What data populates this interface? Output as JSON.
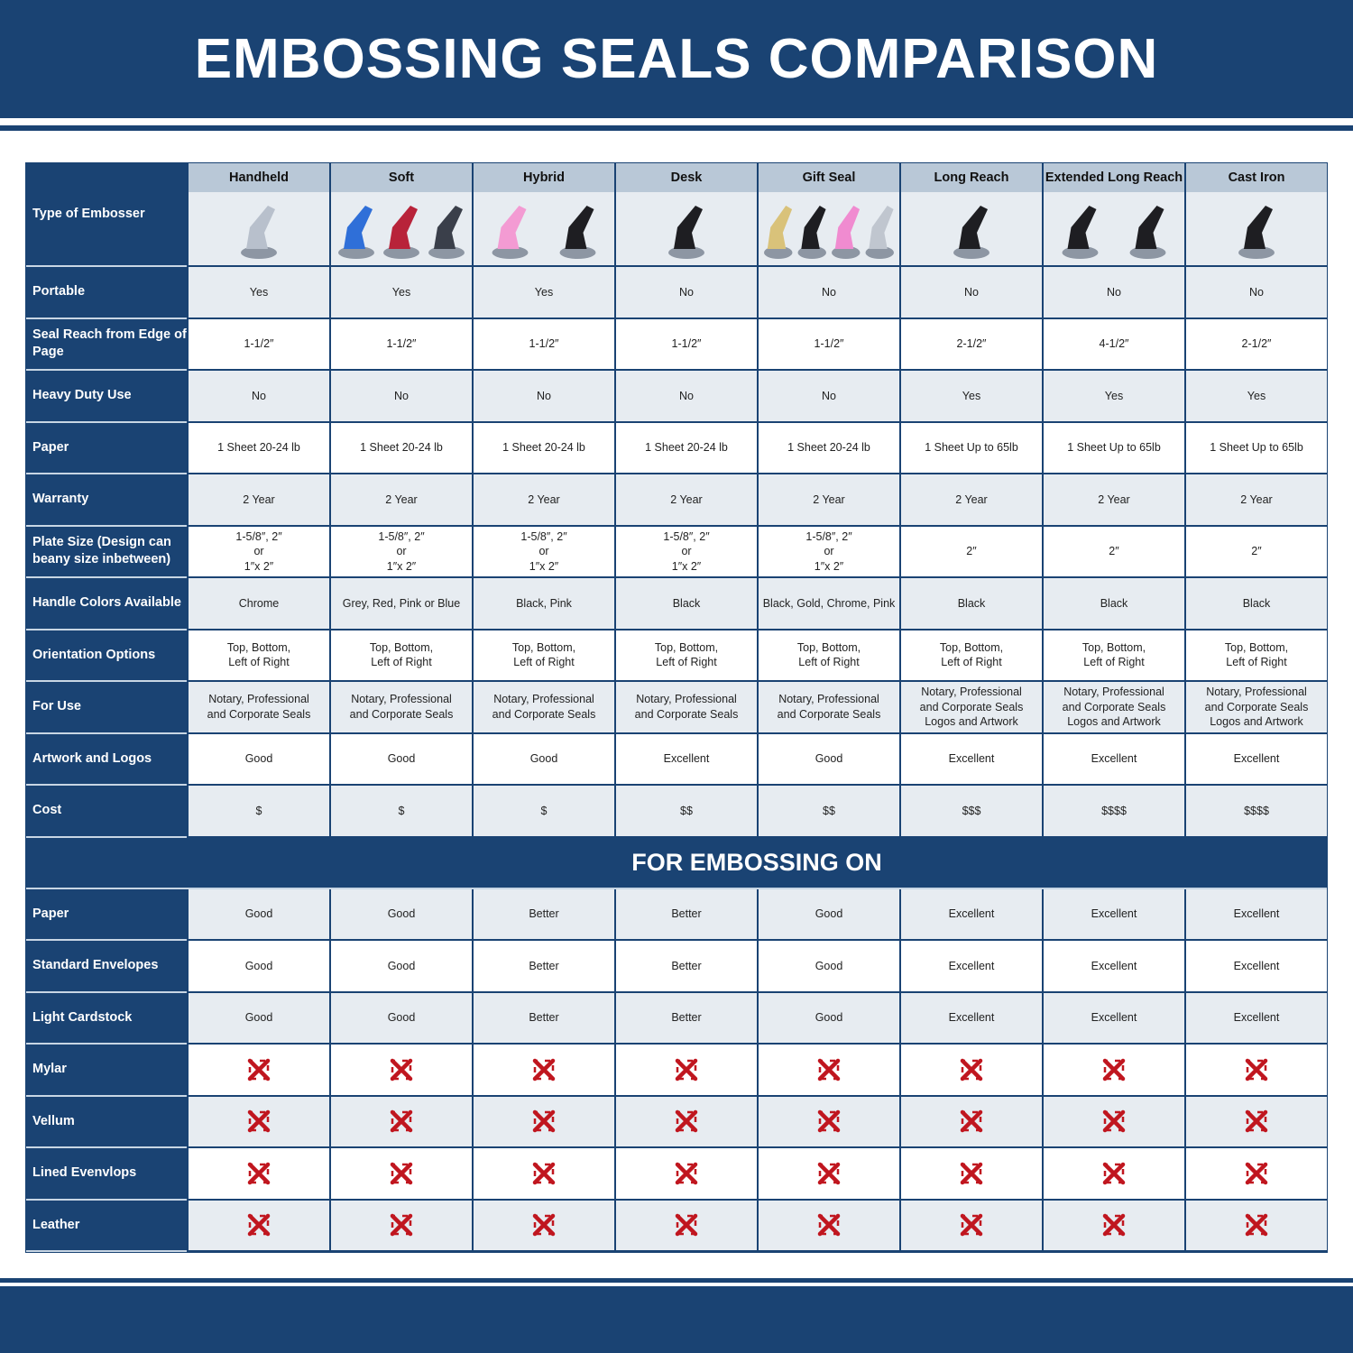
{
  "title": "EMBOSSING SEALS COMPARISON",
  "colors": {
    "navy": "#1a4373",
    "header_gray": "#b9c8d7",
    "row_light": "#e7ecf1",
    "x_red": "#c0161f"
  },
  "header_label": "Type of Embosser",
  "columns": [
    {
      "name": "Handheld",
      "image_colors": [
        "#b8c0cc"
      ]
    },
    {
      "name": "Soft",
      "image_colors": [
        "#2f6fd8",
        "#b8233a",
        "#3a3f4a"
      ]
    },
    {
      "name": "Hybrid",
      "image_colors": [
        "#f39bd3",
        "#1e1e22"
      ]
    },
    {
      "name": "Desk",
      "image_colors": [
        "#1e1e22"
      ]
    },
    {
      "name": "Gift Seal",
      "image_colors": [
        "#d9c27a",
        "#1e1e22",
        "#f08bd0",
        "#c0c6cf"
      ]
    },
    {
      "name": "Long Reach",
      "image_colors": [
        "#1e1e22"
      ]
    },
    {
      "name": "Extended Long Reach",
      "image_colors": [
        "#1e1e22",
        "#1e1e22"
      ]
    },
    {
      "name": "Cast Iron",
      "image_colors": [
        "#1e1e22"
      ]
    }
  ],
  "rows": [
    {
      "label": "Portable",
      "values": [
        "Yes",
        "Yes",
        "Yes",
        "No",
        "No",
        "No",
        "No",
        "No"
      ]
    },
    {
      "label": "Seal Reach from Edge of Page",
      "values": [
        "1-1/2″",
        "1-1/2″",
        "1-1/2″",
        "1-1/2″",
        "1-1/2″",
        "2-1/2″",
        "4-1/2″",
        "2-1/2″"
      ]
    },
    {
      "label": "Heavy Duty Use",
      "values": [
        "No",
        "No",
        "No",
        "No",
        "No",
        "Yes",
        "Yes",
        "Yes"
      ]
    },
    {
      "label": "Paper",
      "values": [
        "1 Sheet 20-24 lb",
        "1 Sheet 20-24 lb",
        "1 Sheet 20-24 lb",
        "1 Sheet 20-24 lb",
        "1 Sheet 20-24 lb",
        "1 Sheet Up to 65lb",
        "1 Sheet Up to 65lb",
        "1 Sheet Up to 65lb"
      ]
    },
    {
      "label": "Warranty",
      "values": [
        "2 Year",
        "2 Year",
        "2 Year",
        "2 Year",
        "2 Year",
        "2 Year",
        "2 Year",
        "2 Year"
      ]
    },
    {
      "label": "Plate Size (Design can beany size inbetween)",
      "values": [
        "1-5/8″, 2″\nor\n1″x 2″",
        "1-5/8″, 2″\nor\n1″x 2″",
        "1-5/8″, 2″\nor\n1″x 2″",
        "1-5/8″, 2″\nor\n1″x 2″",
        "1-5/8″, 2″\nor\n1″x 2″",
        "2″",
        "2″",
        "2″"
      ]
    },
    {
      "label": "Handle Colors Available",
      "values": [
        "Chrome",
        "Grey, Red, Pink or Blue",
        "Black, Pink",
        "Black",
        "Black, Gold, Chrome, Pink",
        "Black",
        "Black",
        "Black"
      ]
    },
    {
      "label": "Orientation Options",
      "values": [
        "Top, Bottom,\nLeft of Right",
        "Top, Bottom,\nLeft of Right",
        "Top, Bottom,\nLeft of Right",
        "Top, Bottom,\nLeft of Right",
        "Top, Bottom,\nLeft of Right",
        "Top, Bottom,\nLeft of Right",
        "Top, Bottom,\nLeft of Right",
        "Top, Bottom,\nLeft of Right"
      ]
    },
    {
      "label": "For Use",
      "values": [
        "Notary, Professional\nand Corporate Seals",
        "Notary, Professional\nand Corporate Seals",
        "Notary, Professional\nand Corporate Seals",
        "Notary, Professional\nand Corporate Seals",
        "Notary, Professional\nand Corporate Seals",
        "Notary, Professional\nand Corporate Seals\nLogos and Artwork",
        "Notary, Professional\nand Corporate Seals\nLogos and Artwork",
        "Notary, Professional\nand Corporate Seals\nLogos and Artwork"
      ]
    },
    {
      "label": "Artwork and Logos",
      "values": [
        "Good",
        "Good",
        "Good",
        "Excellent",
        "Good",
        "Excellent",
        "Excellent",
        "Excellent"
      ]
    },
    {
      "label": "Cost",
      "values": [
        "$",
        "$",
        "$",
        "$$",
        "$$",
        "$$$",
        "$$$$",
        "$$$$"
      ]
    }
  ],
  "section_title": "FOR EMBOSSING ON",
  "embossing_rows": [
    {
      "label": "Paper",
      "values": [
        "Good",
        "Good",
        "Better",
        "Better",
        "Good",
        "Excellent",
        "Excellent",
        "Excellent"
      ]
    },
    {
      "label": "Standard Envelopes",
      "values": [
        "Good",
        "Good",
        "Better",
        "Better",
        "Good",
        "Excellent",
        "Excellent",
        "Excellent"
      ]
    },
    {
      "label": "Light Cardstock",
      "values": [
        "Good",
        "Good",
        "Better",
        "Better",
        "Good",
        "Excellent",
        "Excellent",
        "Excellent"
      ]
    },
    {
      "label": "Mylar",
      "values": [
        "x-icon",
        "x-icon",
        "x-icon",
        "x-icon",
        "x-icon",
        "x-icon",
        "x-icon",
        "x-icon"
      ]
    },
    {
      "label": "Vellum",
      "values": [
        "x-icon",
        "x-icon",
        "x-icon",
        "x-icon",
        "x-icon",
        "x-icon",
        "x-icon",
        "x-icon"
      ]
    },
    {
      "label": "Lined Evenvlops",
      "values": [
        "x-icon",
        "x-icon",
        "x-icon",
        "x-icon",
        "x-icon",
        "x-icon",
        "x-icon",
        "x-icon"
      ]
    },
    {
      "label": "Leather",
      "values": [
        "x-icon",
        "x-icon",
        "x-icon",
        "x-icon",
        "x-icon",
        "x-icon",
        "x-icon",
        "x-icon"
      ]
    }
  ]
}
